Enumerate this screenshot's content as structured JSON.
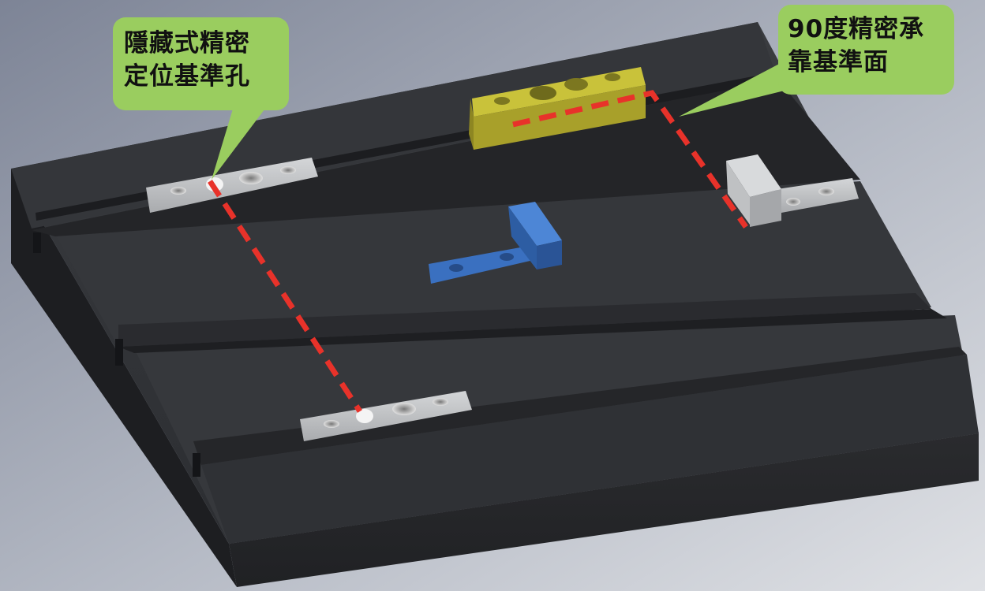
{
  "callouts": {
    "hidden_hole": {
      "line1": "隱藏式精密",
      "line2": "定位基準孔"
    },
    "datum_face": {
      "line1": "90度精密承",
      "line2": "靠基準面"
    }
  },
  "colors": {
    "callout_fill": "#9ACD5F",
    "datum_line": "#E8322A",
    "plate": "#2E3034",
    "gold_block": "#B8B030",
    "blue_bracket": "#3A70C0",
    "steel_strip": "#C2C4C6"
  }
}
